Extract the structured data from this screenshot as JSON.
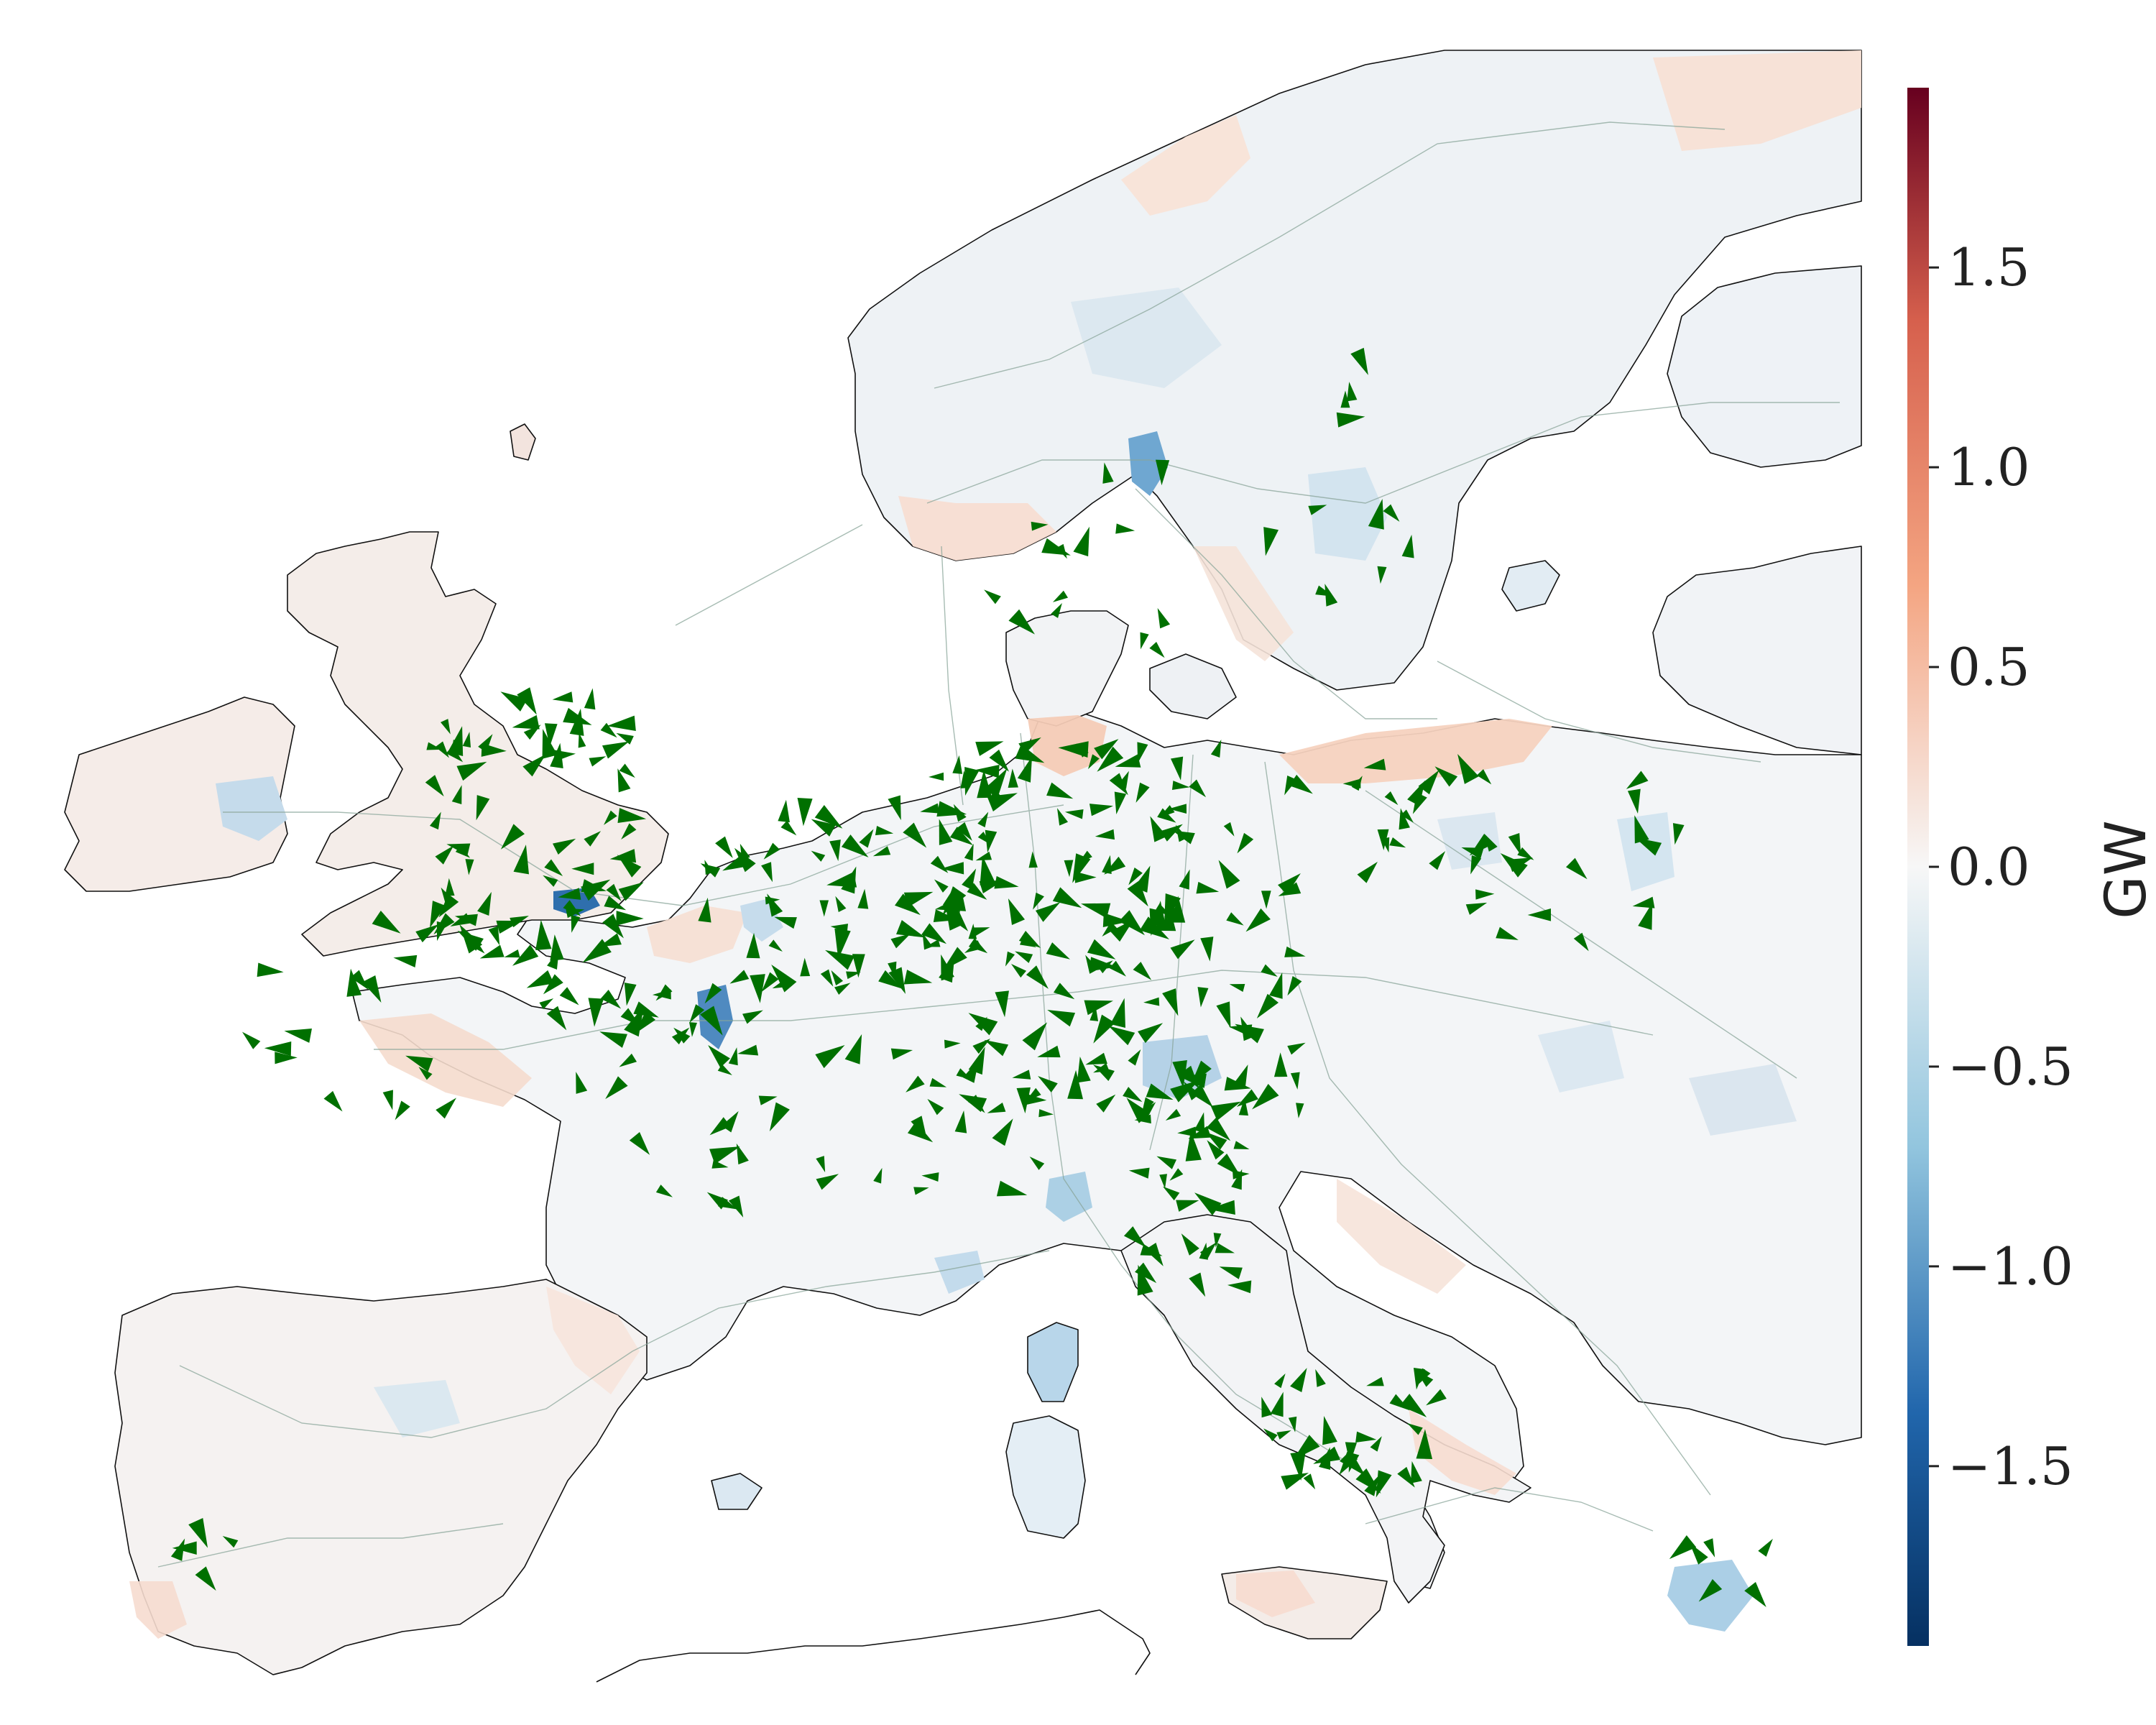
{
  "colorbar": {
    "label": "GW",
    "range": [
      -1.95,
      1.95
    ],
    "ticks": [
      {
        "value": 1.5,
        "label": "1.5"
      },
      {
        "value": 1.0,
        "label": "1.0"
      },
      {
        "value": 0.5,
        "label": "0.5"
      },
      {
        "value": 0.0,
        "label": "0.0"
      },
      {
        "value": -0.5,
        "label": "−0.5"
      },
      {
        "value": -1.0,
        "label": "−1.0"
      },
      {
        "value": -1.5,
        "label": "−1.5"
      }
    ],
    "colormap": "RdBu_r",
    "colors": {
      "deep_blue": "#053061",
      "blue": "#2166ac",
      "light_blue": "#92c5de",
      "white": "#f7f7f7",
      "light_red": "#f4a582",
      "red": "#d6604d",
      "deep_red": "#67001f"
    }
  },
  "map": {
    "flow_arrow_color": "#007000",
    "coastline_color": "#111111",
    "grid_line_color": "#8aa59a"
  }
}
